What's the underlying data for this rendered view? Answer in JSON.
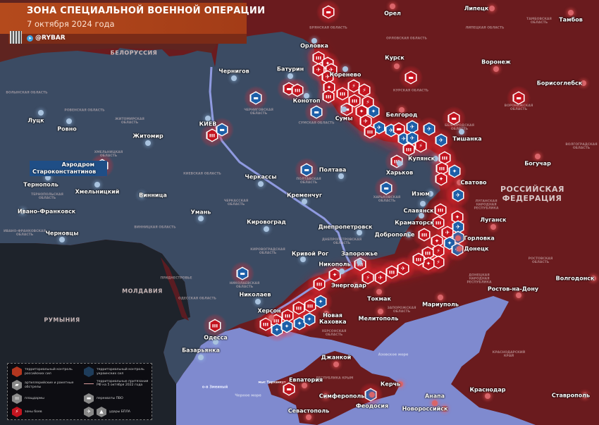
{
  "header": {
    "title": "ЗОНА СПЕЦИАЛЬНОЙ ВОЕННОЙ ОПЕРАЦИИ",
    "date": "7 октября 2024 года",
    "handle": "@RYBAR"
  },
  "colors": {
    "russian_control": "#6a1b1e",
    "ukrainian_control": "#3b4b63",
    "sea": "#7f8acf",
    "neutral_country": "#1e232b",
    "marker_red": "#c3141f",
    "marker_blue": "#1d5fa8",
    "title_bar": "#b44a1c"
  },
  "countries": {
    "belarus": "БЕЛОРУССИЯ",
    "moldova": "МОЛДАВИЯ",
    "romania": "РУМЫНИЯ",
    "russia": "РОССИЙСКАЯ ФЕДЕРАЦИЯ"
  },
  "seas": {
    "black_sea": "Черное море",
    "azov_sea": "Азовское море",
    "snake_island": "о-в Змеиный",
    "tarkhankut": "мыс Тарханкут"
  },
  "cities": [
    "Орел",
    "Липецк",
    "Тамбов",
    "Курск",
    "Воронеж",
    "Борисоглебск",
    "Орловка",
    "Коренево",
    "Чернигов",
    "Батурин",
    "Конотоп",
    "Сумы",
    "Белгород",
    "Тишанка",
    "КИЕВ",
    "Житомир",
    "Луцк",
    "Ровно",
    "Тернополь",
    "Хмельницкий",
    "Винница",
    "Ивано-Франковск",
    "Черновцы",
    "Умань",
    "Кировоград",
    "Черкассы",
    "Кременчуг",
    "Полтава",
    "Харьков",
    "Купянск",
    "Сватово",
    "Богучар",
    "Изюм",
    "Славянск",
    "Краматорск",
    "Доброполье",
    "Горловка",
    "Донецк",
    "Луганск",
    "Днепропетровск",
    "Кривой Рог",
    "Запорожье",
    "Никополь",
    "Энергодар",
    "Токмак",
    "Мелитополь",
    "Мариуполь",
    "Ростов-на-Дону",
    "Волгодонск",
    "Николаев",
    "Херсон",
    "Новая Каховка",
    "Одесса",
    "Базарьянка",
    "Джанкой",
    "Евпатория",
    "Симферополь",
    "Севастополь",
    "Керчь",
    "Феодосия",
    "Анапа",
    "Новороссийск",
    "Краснодар",
    "Ставрополь"
  ],
  "airfield": "Аэродром Староконстантинов",
  "regions": [
    "БРЯНСКАЯ ОБЛАСТЬ",
    "ОРЛОВСКАЯ ОБЛАСТЬ",
    "ЛИПЕЦКАЯ ОБЛАСТЬ",
    "ТАМБОВСКАЯ ОБЛАСТЬ",
    "КУРСКАЯ ОБЛАСТЬ",
    "ВОРОНЕЖСКАЯ ОБЛАСТЬ",
    "БЕЛГОРОДСКАЯ ОБЛАСТЬ",
    "ВОЛГОГРАДСКАЯ ОБЛАСТЬ",
    "ЧЕРНИГОВСКАЯ ОБЛАСТЬ",
    "СУМСКАЯ ОБЛАСТЬ",
    "ВОЛЫНСКАЯ ОБЛАСТЬ",
    "РОВЕНСКАЯ ОБЛАСТЬ",
    "ЖИТОМИРСКАЯ ОБЛАСТЬ",
    "ХМЕЛЬНИЦКАЯ ОБЛАСТЬ",
    "КИЕВСКАЯ ОБЛАСТЬ",
    "ТЕРНОПОЛЬСКАЯ ОБЛАСТЬ",
    "ВИННИЦКАЯ ОБЛАСТЬ",
    "ЧЕРКАССКАЯ ОБЛАСТЬ",
    "ПОЛТАВСКАЯ ОБЛАСТЬ",
    "ХАРЬКОВСКАЯ ОБЛАСТЬ",
    "ЛУГАНСКАЯ НАРОДНАЯ РЕСПУБЛИКА",
    "ДНЕПРОПЕТРОВСКАЯ ОБЛАСТЬ",
    "КИРОВОГРАДСКАЯ ОБЛАСТЬ",
    "ДОНЕЦКАЯ НАРОДНАЯ РЕСПУБЛИКА",
    "РОСТОВСКАЯ ОБЛАСТЬ",
    "НИКОЛАЕВСКАЯ ОБЛАСТЬ",
    "ОДЕССКАЯ ОБЛАСТЬ",
    "ЗАПОРОЖСКАЯ ОБЛАСТЬ",
    "ХЕРСОНСКАЯ ОБЛАСТЬ",
    "РЕСПУБЛИКА КРЫМ",
    "КРАСНОДАРСКИЙ КРАЙ",
    "ИВАНО-ФРАНКОВСКАЯ ОБЛАСТЬ",
    "ПРИДНЕСТРОВЬЕ"
  ],
  "legend": {
    "ru_control": "территориальный контроль российских сил",
    "ua_control": "территориальный контроль украинских сил",
    "shelling": "артиллерийские и ракетные обстрелы",
    "claims": "территориальные притязания РФ на 5 октября 2022 года",
    "bridgeheads": "плацдармы",
    "air_defense": "перехваты ПВО",
    "combat_zones": "зоны боев",
    "uav_strikes": "удары БПЛА"
  }
}
